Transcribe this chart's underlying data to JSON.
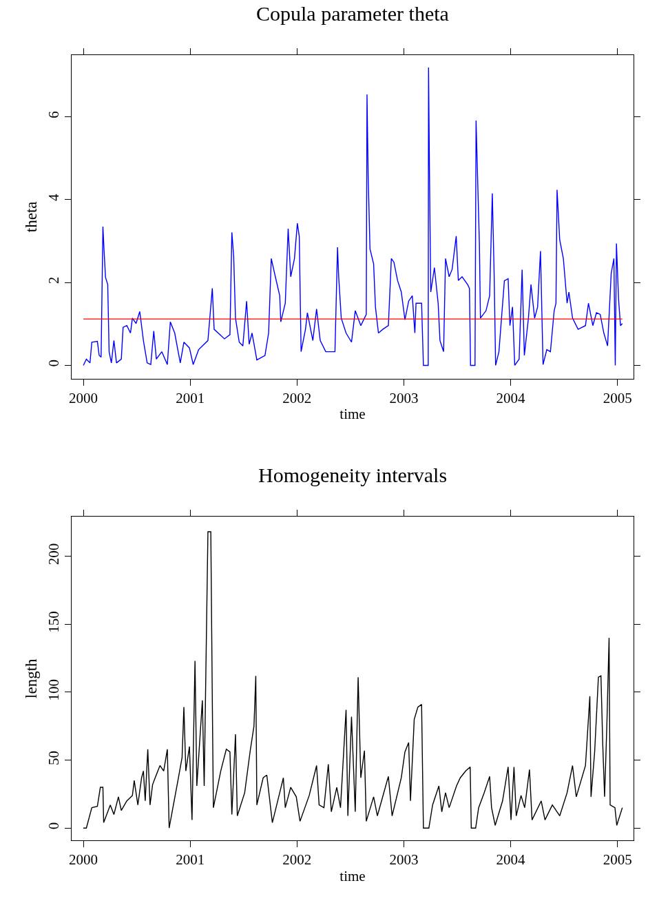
{
  "chart_data": [
    {
      "type": "line",
      "title": "Copula parameter theta",
      "xlabel": "time",
      "ylabel": "theta",
      "xlim": [
        1999.89,
        2005.15
      ],
      "xticks": [
        2000,
        2001,
        2002,
        2003,
        2004,
        2005
      ],
      "ylim": [
        -0.32,
        7.49
      ],
      "yticks": [
        0,
        2,
        4,
        6
      ],
      "series": [
        {
          "color": "#0000ff",
          "x": [
            2000.0,
            2000.028,
            2000.062,
            2000.079,
            2000.131,
            2000.148,
            2000.166,
            2000.183,
            2000.193,
            2000.207,
            2000.228,
            2000.241,
            2000.262,
            2000.286,
            2000.31,
            2000.355,
            2000.372,
            2000.407,
            2000.441,
            2000.459,
            2000.493,
            2000.528,
            2000.562,
            2000.597,
            2000.631,
            2000.659,
            2000.683,
            2000.734,
            2000.786,
            2000.814,
            2000.855,
            2000.907,
            2000.941,
            2000.993,
            2001.028,
            2001.079,
            2001.166,
            2001.207,
            2001.224,
            2001.321,
            2001.372,
            2001.39,
            2001.407,
            2001.424,
            2001.459,
            2001.493,
            2001.528,
            2001.552,
            2001.579,
            2001.624,
            2001.7,
            2001.734,
            2001.759,
            2001.797,
            2001.838,
            2001.848,
            2001.89,
            2001.917,
            2001.941,
            2001.976,
            2002.003,
            2002.021,
            2002.038,
            2002.079,
            2002.097,
            2002.148,
            2002.183,
            2002.217,
            2002.269,
            2002.321,
            2002.355,
            2002.379,
            2002.39,
            2002.414,
            2002.459,
            2002.51,
            2002.545,
            2002.597,
            2002.631,
            2002.648,
            2002.655,
            2002.666,
            2002.683,
            2002.717,
            2002.734,
            2002.762,
            2002.803,
            2002.855,
            2002.883,
            2002.907,
            2002.941,
            2002.976,
            2003.01,
            2003.045,
            2003.079,
            2003.103,
            2003.114,
            2003.166,
            2003.183,
            2003.228,
            2003.231,
            2003.241,
            2003.252,
            2003.286,
            2003.321,
            2003.338,
            2003.372,
            2003.39,
            2003.424,
            2003.452,
            2003.49,
            2003.51,
            2003.545,
            2003.597,
            2003.614,
            2003.624,
            2003.666,
            2003.676,
            2003.69,
            2003.707,
            2003.717,
            2003.769,
            2003.803,
            2003.828,
            2003.845,
            2003.859,
            2003.89,
            2003.941,
            2003.976,
            2003.993,
            2004.017,
            2004.038,
            2004.079,
            2004.107,
            2004.128,
            2004.166,
            2004.19,
            2004.224,
            2004.252,
            2004.279,
            2004.303,
            2004.338,
            2004.372,
            2004.407,
            2004.424,
            2004.434,
            2004.459,
            2004.493,
            2004.528,
            2004.545,
            2004.579,
            2004.631,
            2004.7,
            2004.728,
            2004.769,
            2004.803,
            2004.838,
            2004.872,
            2004.907,
            2004.941,
            2004.966,
            2004.979,
            2004.99,
            2005.01,
            2005.028,
            2005.045
          ],
          "values": [
            0,
            0.15,
            0.06,
            0.56,
            0.58,
            0.24,
            0.2,
            3.35,
            2.81,
            2.13,
            1.95,
            0.33,
            0.06,
            0.6,
            0.06,
            0.15,
            0.92,
            0.96,
            0.78,
            1.14,
            1.01,
            1.3,
            0.6,
            0.06,
            0.02,
            0.83,
            0.15,
            0.33,
            0.02,
            1.05,
            0.78,
            0.06,
            0.56,
            0.42,
            0.02,
            0.38,
            0.6,
            1.86,
            0.87,
            0.64,
            0.74,
            3.21,
            2.63,
            1.14,
            0.56,
            0.47,
            1.55,
            0.51,
            0.78,
            0.13,
            0.24,
            0.78,
            2.58,
            2.14,
            1.68,
            1.05,
            1.5,
            3.3,
            2.14,
            2.58,
            3.43,
            3.11,
            0.33,
            0.87,
            1.27,
            0.6,
            1.36,
            0.6,
            0.33,
            0.33,
            0.33,
            2.85,
            2.14,
            1.14,
            0.78,
            0.56,
            1.32,
            0.96,
            1.14,
            1.23,
            6.54,
            4.56,
            2.81,
            2.45,
            1.41,
            0.78,
            0.87,
            0.96,
            2.58,
            2.49,
            2.05,
            1.77,
            1.1,
            1.55,
            1.68,
            0.78,
            1.5,
            1.5,
            0,
            0,
            7.19,
            4.38,
            1.77,
            2.36,
            1.5,
            0.6,
            0.33,
            2.58,
            2.14,
            2.32,
            3.12,
            2.05,
            2.14,
            1.95,
            1.86,
            0,
            0,
            5.91,
            4.56,
            2.94,
            1.14,
            1.32,
            1.68,
            4.15,
            2.23,
            0,
            0.33,
            2.04,
            2.09,
            0.96,
            1.41,
            0,
            0.15,
            2.31,
            0.24,
            1.14,
            1.95,
            1.14,
            1.41,
            2.76,
            0.02,
            0.38,
            0.33,
            1.32,
            1.5,
            4.24,
            3.03,
            2.58,
            1.5,
            1.77,
            1.14,
            0.87,
            0.96,
            1.5,
            0.96,
            1.27,
            1.23,
            0.78,
            0.47,
            2.22,
            2.58,
            0,
            2.94,
            1.59,
            0.96,
            1.01
          ]
        }
      ],
      "ref_lines": [
        {
          "axis": "y",
          "value": 1.12,
          "color": "#ff0000"
        }
      ]
    },
    {
      "type": "line",
      "title": "Homogeneity intervals",
      "xlabel": "time",
      "ylabel": "length",
      "xlim": [
        1999.89,
        2005.15
      ],
      "xticks": [
        2000,
        2001,
        2002,
        2003,
        2004,
        2005
      ],
      "ylim": [
        -9,
        229
      ],
      "yticks": [
        0,
        50,
        100,
        150,
        200
      ],
      "series": [
        {
          "color": "#000000",
          "x": [
            2000.0,
            2000.028,
            2000.079,
            2000.131,
            2000.159,
            2000.183,
            2000.19,
            2000.252,
            2000.286,
            2000.328,
            2000.355,
            2000.407,
            2000.459,
            2000.476,
            2000.51,
            2000.545,
            2000.562,
            2000.579,
            2000.603,
            2000.624,
            2000.648,
            2000.672,
            2000.717,
            2000.752,
            2000.786,
            2000.803,
            2000.838,
            2000.89,
            2000.924,
            2000.941,
            2000.959,
            2000.993,
            2001.017,
            2001.045,
            2001.062,
            2001.114,
            2001.131,
            2001.166,
            2001.193,
            2001.207,
            2001.217,
            2001.286,
            2001.338,
            2001.372,
            2001.39,
            2001.424,
            2001.441,
            2001.51,
            2001.562,
            2001.597,
            2001.614,
            2001.624,
            2001.683,
            2001.717,
            2001.769,
            2001.838,
            2001.872,
            2001.89,
            2001.941,
            2001.993,
            2002.028,
            2002.114,
            2002.183,
            2002.207,
            2002.252,
            2002.293,
            2002.321,
            2002.372,
            2002.407,
            2002.459,
            2002.476,
            2002.51,
            2002.545,
            2002.572,
            2002.597,
            2002.631,
            2002.648,
            2002.717,
            2002.752,
            2002.855,
            2002.89,
            2002.976,
            2003.01,
            2003.045,
            2003.062,
            2003.097,
            2003.131,
            2003.166,
            2003.183,
            2003.234,
            2003.269,
            2003.328,
            2003.355,
            2003.39,
            2003.424,
            2003.493,
            2003.528,
            2003.579,
            2003.621,
            2003.631,
            2003.672,
            2003.7,
            2003.752,
            2003.803,
            2003.821,
            2003.855,
            2003.924,
            2003.976,
            2004.003,
            2004.031,
            2004.052,
            2004.097,
            2004.131,
            2004.176,
            2004.2,
            2004.286,
            2004.321,
            2004.39,
            2004.459,
            2004.528,
            2004.579,
            2004.614,
            2004.7,
            2004.741,
            2004.752,
            2004.786,
            2004.821,
            2004.845,
            2004.862,
            2004.879,
            2004.9,
            2004.921,
            2004.931,
            2004.976,
            2004.993,
            2005.045
          ],
          "values": [
            0,
            0,
            15,
            16,
            30,
            30,
            4,
            17,
            10,
            23,
            13,
            20,
            24,
            35,
            17,
            37,
            42,
            20,
            58,
            17,
            32,
            37,
            46,
            42,
            58,
            0,
            15,
            37,
            52,
            89,
            42,
            60,
            6,
            123,
            31,
            94,
            31,
            218,
            218,
            94,
            15,
            42,
            58,
            56,
            10,
            69,
            9,
            26,
            57,
            75,
            112,
            17,
            37,
            39,
            4,
            26,
            37,
            15,
            30,
            23,
            5,
            24,
            46,
            17,
            15,
            47,
            12,
            30,
            15,
            87,
            9,
            82,
            12,
            111,
            37,
            57,
            5,
            23,
            9,
            38,
            9,
            37,
            56,
            63,
            20,
            80,
            89,
            91,
            0,
            0,
            17,
            31,
            12,
            26,
            15,
            31,
            37,
            42,
            45,
            0,
            0,
            15,
            26,
            38,
            15,
            2,
            20,
            45,
            6,
            45,
            9,
            24,
            15,
            43,
            6,
            20,
            6,
            17,
            9,
            26,
            46,
            23,
            46,
            97,
            23,
            56,
            111,
            112,
            61,
            23,
            75,
            140,
            17,
            15,
            2,
            15
          ]
        }
      ]
    }
  ]
}
